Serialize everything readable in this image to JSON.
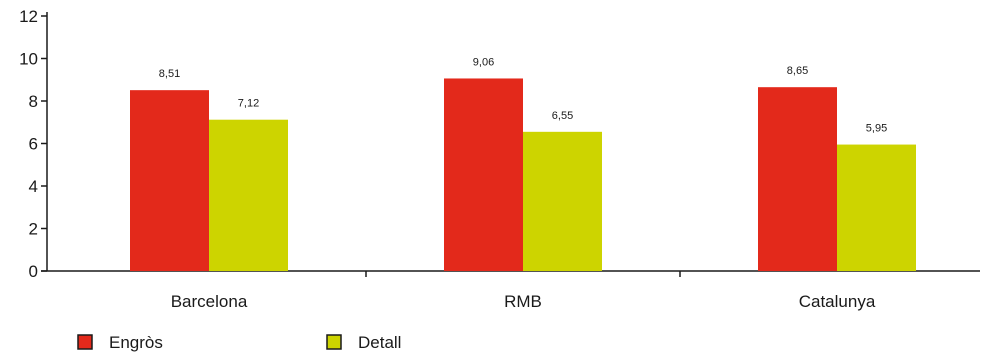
{
  "chart_data": {
    "type": "bar",
    "categories": [
      "Barcelona",
      "RMB",
      "Catalunya"
    ],
    "series": [
      {
        "name": "Engròs",
        "values": [
          8.51,
          9.06,
          8.65
        ],
        "labels": [
          "8,51",
          "9,06",
          "8,65"
        ],
        "color": "#e3291b"
      },
      {
        "name": "Detall",
        "values": [
          7.12,
          6.55,
          5.95
        ],
        "labels": [
          "7,12",
          "6,55",
          "5,95"
        ],
        "color": "#cdd400"
      }
    ],
    "ylim": [
      0,
      12
    ],
    "yticks": [
      0,
      2,
      4,
      6,
      8,
      10,
      12
    ],
    "ytick_labels": [
      "0",
      "2",
      "4",
      "6",
      "8",
      "10",
      "12"
    ],
    "legend_position": "bottom-left",
    "grid": false
  }
}
